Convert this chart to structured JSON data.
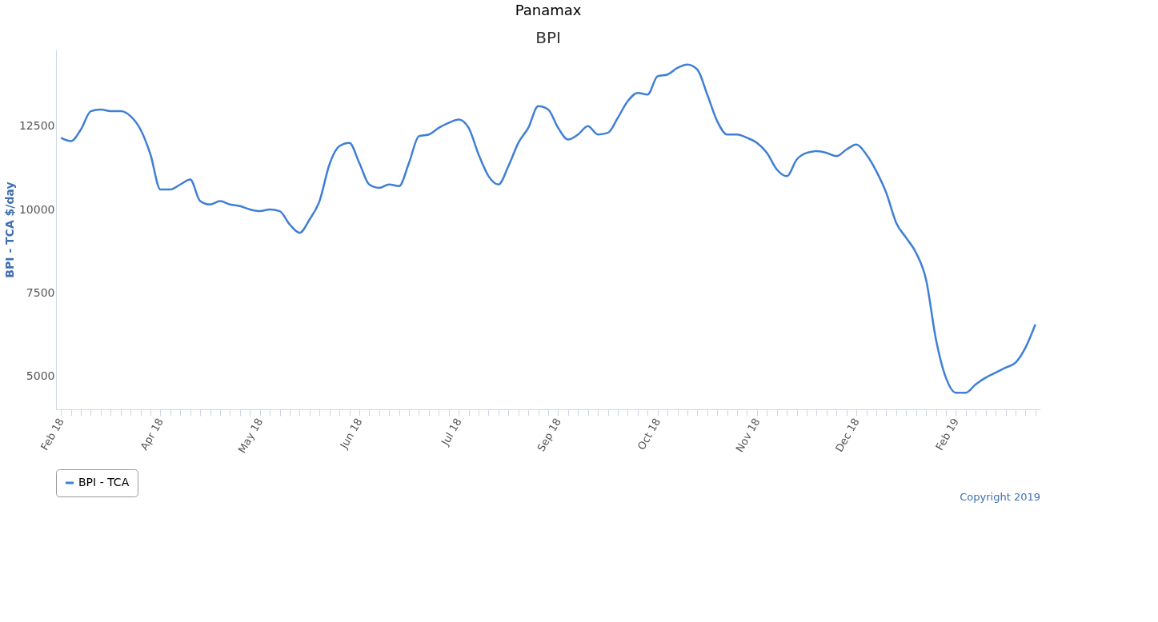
{
  "chart_data": {
    "type": "line",
    "title": "Panamax",
    "subtitle": "BPI",
    "ylabel": "BPI - TCA $/day",
    "categories": [
      "Feb 18",
      null,
      null,
      null,
      null,
      null,
      null,
      null,
      null,
      null,
      "Apr 18",
      null,
      null,
      null,
      null,
      null,
      null,
      null,
      null,
      null,
      "May 18",
      null,
      null,
      null,
      null,
      null,
      null,
      null,
      null,
      null,
      "Jun 18",
      null,
      null,
      null,
      null,
      null,
      null,
      null,
      null,
      null,
      "Jul 18",
      null,
      null,
      null,
      null,
      null,
      null,
      null,
      null,
      null,
      "Sep 18",
      null,
      null,
      null,
      null,
      null,
      null,
      null,
      null,
      null,
      "Oct 18",
      null,
      null,
      null,
      null,
      null,
      null,
      null,
      null,
      null,
      "Nov 18",
      null,
      null,
      null,
      null,
      null,
      null,
      null,
      null,
      null,
      "Dec 18",
      null,
      null,
      null,
      null,
      null,
      null,
      null,
      null,
      null,
      "Feb 19",
      null,
      null,
      null,
      null,
      null,
      null,
      null,
      null
    ],
    "series": [
      {
        "name": "BPI - TCA",
        "color": "#3f7fd6",
        "values": [
          12150,
          12050,
          12400,
          12950,
          13000,
          12950,
          12950,
          12800,
          12400,
          11650,
          10600,
          10600,
          10750,
          10900,
          10250,
          10150,
          10250,
          10150,
          10100,
          10000,
          9950,
          10000,
          9950,
          9550,
          9300,
          9700,
          10250,
          11350,
          11900,
          12000,
          11400,
          10750,
          10650,
          10750,
          10700,
          11400,
          12200,
          12250,
          12450,
          12600,
          12700,
          12450,
          11650,
          11000,
          10750,
          11300,
          12000,
          12450,
          13100,
          13000,
          12450,
          12100,
          12250,
          12500,
          12250,
          12300,
          12750,
          13250,
          13500,
          13450,
          14000,
          14050,
          14250,
          14350,
          14200,
          13450,
          12650,
          12250,
          12250,
          12150,
          12000,
          11700,
          11200,
          11000,
          11500,
          11700,
          11750,
          11700,
          11600,
          11800,
          11950,
          11650,
          11150,
          10500,
          9600,
          9150,
          8700,
          7900,
          6100,
          4950,
          4500,
          4500,
          4750,
          4950,
          5100,
          5250,
          5400,
          5850,
          6550
        ]
      }
    ],
    "ylim": [
      4000,
      14800
    ],
    "yticks": [
      5000,
      7500,
      10000,
      12500
    ],
    "grid": false,
    "legend": "bottom left",
    "marker": "none",
    "line_style": "solid",
    "annotations": [
      "Copyright 2019"
    ]
  }
}
